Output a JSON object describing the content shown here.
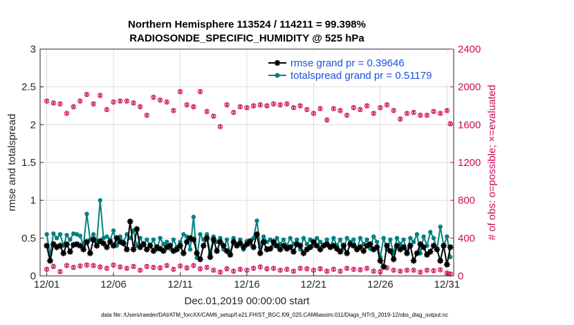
{
  "chart_data": {
    "type": "line",
    "title_line1": "Northern Hemisphere 113524 / 114211 = 99.398%",
    "title_line2": "RADIOSONDE_SPECIFIC_HUMIDITY @ 525 hPa",
    "xlabel": "Dec.01,2019 00:00:00 start",
    "ylabel_left": "rmse and totalspread",
    "ylabel_right": "# of obs: o=possible; ×=evaluated",
    "footer": "data file: /Users/raeder/DAI/ATM_forcXX/CAM6_setup/f.e21.FHIST_BGC.f09_025.CAM6assim.011/Diags_NTrS_2019-12/obs_diag_output.nc",
    "xlim": [
      0.5,
      31.5
    ],
    "x_ticks": [
      1,
      6,
      11,
      16,
      21,
      26,
      31
    ],
    "x_tick_labels": [
      "12/01",
      "12/06",
      "12/11",
      "12/16",
      "12/21",
      "12/26",
      "12/31"
    ],
    "ylim_left": [
      0,
      3
    ],
    "y_ticks_left": [
      "0",
      "0.5",
      "1",
      "1.5",
      "2",
      "2.5",
      "3"
    ],
    "ylim_right": [
      0,
      2400
    ],
    "y_ticks_right": [
      "0",
      "400",
      "800",
      "1200",
      "1600",
      "2000",
      "2400"
    ],
    "colors": {
      "rmse": "#000000",
      "spread": "#00807f",
      "obs": "#cc0a5a",
      "legend_text": "#1a4fd8",
      "grid": "#dcdcdc"
    },
    "legend": [
      {
        "key": "rmse",
        "label": "rmse grand pr = 0.39646"
      },
      {
        "key": "spread",
        "label": "totalspread grand pr = 0.51179"
      }
    ],
    "series": [
      {
        "name": "rmse",
        "x": [
          1,
          1.25,
          1.5,
          1.75,
          2,
          2.25,
          2.5,
          2.75,
          3,
          3.25,
          3.5,
          3.75,
          4,
          4.25,
          4.5,
          4.75,
          5,
          5.25,
          5.5,
          5.75,
          6,
          6.25,
          6.5,
          6.75,
          7,
          7.25,
          7.5,
          7.75,
          8,
          8.25,
          8.5,
          8.75,
          9,
          9.25,
          9.5,
          9.75,
          10,
          10.25,
          10.5,
          10.75,
          11,
          11.25,
          11.5,
          11.75,
          12,
          12.25,
          12.5,
          12.75,
          13,
          13.25,
          13.5,
          13.75,
          14,
          14.25,
          14.5,
          14.75,
          15,
          15.25,
          15.5,
          15.75,
          16,
          16.25,
          16.5,
          16.75,
          17,
          17.25,
          17.5,
          17.75,
          18,
          18.25,
          18.5,
          18.75,
          19,
          19.25,
          19.5,
          19.75,
          20,
          20.25,
          20.5,
          20.75,
          21,
          21.25,
          21.5,
          21.75,
          22,
          22.25,
          22.5,
          22.75,
          23,
          23.25,
          23.5,
          23.75,
          24,
          24.25,
          24.5,
          24.75,
          25,
          25.25,
          25.5,
          25.75,
          26,
          26.25,
          26.5,
          26.75,
          27,
          27.25,
          27.5,
          27.75,
          28,
          28.25,
          28.5,
          28.75,
          29,
          29.25,
          29.5,
          29.75,
          30,
          30.25,
          30.5,
          30.75,
          31,
          31.25
        ],
        "values": [
          0.4,
          0.2,
          0.42,
          0.38,
          0.4,
          0.3,
          0.42,
          0.32,
          0.41,
          0.42,
          0.4,
          0.35,
          0.45,
          0.3,
          0.48,
          0.4,
          0.46,
          0.43,
          0.38,
          0.45,
          0.4,
          0.5,
          0.45,
          0.43,
          0.35,
          0.72,
          0.35,
          0.62,
          0.38,
          0.42,
          0.35,
          0.4,
          0.33,
          0.38,
          0.36,
          0.33,
          0.38,
          0.4,
          0.33,
          0.35,
          0.4,
          0.3,
          0.45,
          0.5,
          0.48,
          0.3,
          0.22,
          0.4,
          0.5,
          0.25,
          0.48,
          0.33,
          0.45,
          0.4,
          0.33,
          0.28,
          0.45,
          0.4,
          0.43,
          0.38,
          0.42,
          0.46,
          0.38,
          0.55,
          0.3,
          0.45,
          0.35,
          0.36,
          0.45,
          0.4,
          0.35,
          0.4,
          0.36,
          0.38,
          0.32,
          0.42,
          0.4,
          0.3,
          0.35,
          0.38,
          0.45,
          0.4,
          0.35,
          0.4,
          0.42,
          0.38,
          0.4,
          0.36,
          0.32,
          0.4,
          0.3,
          0.42,
          0.4,
          0.35,
          0.38,
          0.33,
          0.4,
          0.42,
          0.35,
          0.38,
          0.2,
          0.12,
          0.4,
          0.33,
          0.22,
          0.4,
          0.35,
          0.38,
          0.3,
          0.4,
          0.2,
          0.3,
          0.42,
          0.38,
          0.28,
          0.32,
          0.4,
          0.35,
          0.2,
          0.4,
          0.15,
          0.38
        ]
      },
      {
        "name": "totalspread",
        "x": [
          1,
          1.25,
          1.5,
          1.75,
          2,
          2.25,
          2.5,
          2.75,
          3,
          3.25,
          3.5,
          3.75,
          4,
          4.25,
          4.5,
          4.75,
          5,
          5.25,
          5.5,
          5.75,
          6,
          6.25,
          6.5,
          6.75,
          7,
          7.25,
          7.5,
          7.75,
          8,
          8.25,
          8.5,
          8.75,
          9,
          9.25,
          9.5,
          9.75,
          10,
          10.25,
          10.5,
          10.75,
          11,
          11.25,
          11.5,
          11.75,
          12,
          12.25,
          12.5,
          12.75,
          13,
          13.25,
          13.5,
          13.75,
          14,
          14.25,
          14.5,
          14.75,
          15,
          15.25,
          15.5,
          15.75,
          16,
          16.25,
          16.5,
          16.75,
          17,
          17.25,
          17.5,
          17.75,
          18,
          18.25,
          18.5,
          18.75,
          19,
          19.25,
          19.5,
          19.75,
          20,
          20.25,
          20.5,
          20.75,
          21,
          21.25,
          21.5,
          21.75,
          22,
          22.25,
          22.5,
          22.75,
          23,
          23.25,
          23.5,
          23.75,
          24,
          24.25,
          24.5,
          24.75,
          25,
          25.25,
          25.5,
          25.75,
          26,
          26.25,
          26.5,
          26.75,
          27,
          27.25,
          27.5,
          27.75,
          28,
          28.25,
          28.5,
          28.75,
          29,
          29.25,
          29.5,
          29.75,
          30,
          30.25,
          30.5,
          30.75,
          31,
          31.25
        ],
        "values": [
          0.55,
          0.28,
          0.56,
          0.5,
          0.55,
          0.4,
          0.54,
          0.48,
          0.56,
          0.55,
          0.53,
          0.4,
          0.82,
          0.48,
          0.55,
          0.45,
          1.0,
          0.5,
          0.52,
          0.48,
          0.6,
          0.4,
          0.52,
          0.45,
          0.55,
          0.5,
          0.6,
          0.4,
          0.5,
          0.42,
          0.48,
          0.4,
          0.48,
          0.35,
          0.5,
          0.42,
          0.45,
          0.36,
          0.48,
          0.38,
          0.45,
          0.55,
          0.52,
          0.35,
          0.78,
          0.24,
          0.55,
          0.48,
          0.55,
          0.3,
          0.52,
          0.45,
          0.5,
          0.35,
          0.48,
          0.3,
          0.5,
          0.42,
          0.48,
          0.35,
          0.46,
          0.42,
          0.5,
          0.73,
          0.38,
          0.52,
          0.45,
          0.48,
          0.4,
          0.5,
          0.42,
          0.48,
          0.4,
          0.5,
          0.42,
          0.48,
          0.35,
          0.5,
          0.42,
          0.48,
          0.4,
          0.5,
          0.45,
          0.4,
          0.48,
          0.38,
          0.5,
          0.4,
          0.48,
          0.36,
          0.5,
          0.45,
          0.48,
          0.35,
          0.5,
          0.42,
          0.48,
          0.36,
          0.52,
          0.45,
          0.25,
          0.5,
          0.35,
          0.48,
          0.3,
          0.5,
          0.42,
          0.48,
          0.32,
          0.5,
          0.45,
          0.55,
          0.3,
          0.52,
          0.4,
          0.58,
          0.5,
          0.35,
          0.65,
          0.4,
          0.52,
          0.25
        ]
      },
      {
        "name": "obs_possible",
        "axis": "right",
        "x": [
          1,
          1.5,
          2,
          2.5,
          3,
          3.5,
          4,
          4.5,
          5,
          5.5,
          6,
          6.5,
          7,
          7.5,
          8,
          8.5,
          9,
          9.5,
          10,
          10.5,
          11,
          11.5,
          12,
          12.5,
          13,
          13.5,
          14,
          14.5,
          15,
          15.5,
          16,
          16.5,
          17,
          17.5,
          18,
          18.5,
          19,
          19.5,
          20,
          20.5,
          21,
          21.5,
          22,
          22.5,
          23,
          23.5,
          24,
          24.5,
          25,
          25.5,
          26,
          26.5,
          27,
          27.5,
          28,
          28.5,
          29,
          29.5,
          30,
          30.5,
          31,
          31.25
        ],
        "values": [
          1850,
          1830,
          1820,
          1720,
          1790,
          1850,
          1920,
          1820,
          1910,
          1760,
          1840,
          1850,
          1850,
          1830,
          1790,
          1700,
          1890,
          1860,
          1840,
          1750,
          1950,
          1810,
          1790,
          1950,
          1740,
          1690,
          1580,
          1810,
          1730,
          1790,
          1780,
          1800,
          1810,
          1800,
          1820,
          1810,
          1820,
          1780,
          1800,
          1760,
          1720,
          1770,
          1650,
          1770,
          1750,
          1700,
          1780,
          1760,
          1800,
          1720,
          1780,
          1810,
          1750,
          1660,
          1720,
          1730,
          1700,
          1700,
          1740,
          1720,
          1750,
          1610
        ]
      },
      {
        "name": "obs_evaluated",
        "axis": "right",
        "x": [
          1,
          1.5,
          2,
          2.5,
          3,
          3.5,
          4,
          4.5,
          5,
          5.5,
          6,
          6.5,
          7,
          7.5,
          8,
          8.5,
          9,
          9.5,
          10,
          10.5,
          11,
          11.5,
          12,
          12.5,
          13,
          13.5,
          14,
          14.5,
          15,
          15.5,
          16,
          16.5,
          17,
          17.5,
          18,
          18.5,
          19,
          19.5,
          20,
          20.5,
          21,
          21.5,
          22,
          22.5,
          23,
          23.5,
          24,
          24.5,
          25,
          25.5,
          26,
          26.5,
          27,
          27.5,
          28,
          28.5,
          29,
          29.5,
          30,
          30.5,
          31,
          31.25
        ],
        "values": [
          1850,
          1830,
          1820,
          1720,
          1790,
          1850,
          1920,
          1820,
          1910,
          1760,
          1840,
          1850,
          1850,
          1830,
          1790,
          1700,
          1890,
          1860,
          1840,
          1750,
          1950,
          1810,
          1790,
          1950,
          1740,
          1690,
          1580,
          1810,
          1730,
          1790,
          1780,
          1800,
          1810,
          1800,
          1820,
          1810,
          1820,
          1780,
          1800,
          1760,
          1720,
          1770,
          1650,
          1770,
          1750,
          1700,
          1780,
          1760,
          1800,
          1720,
          1780,
          1810,
          1750,
          1660,
          1720,
          1730,
          1700,
          1700,
          1740,
          1720,
          1750,
          1610
        ]
      },
      {
        "name": "obs_low_possible",
        "axis": "right",
        "x": [
          1,
          1.5,
          2,
          2.5,
          3,
          3.5,
          4,
          4.5,
          5,
          5.5,
          6,
          6.5,
          7,
          7.5,
          8,
          8.5,
          9,
          9.5,
          10,
          10.5,
          11,
          11.5,
          12,
          12.5,
          13,
          13.5,
          14,
          14.5,
          15,
          15.5,
          16,
          16.5,
          17,
          17.5,
          18,
          18.5,
          19,
          19.5,
          20,
          20.5,
          21,
          21.5,
          22,
          22.5,
          23,
          23.5,
          24,
          24.5,
          25,
          25.5,
          26,
          26.5,
          27,
          27.5,
          28,
          28.5,
          29,
          29.5,
          30,
          30.5,
          31,
          31.25
        ],
        "values": [
          70,
          100,
          45,
          110,
          90,
          105,
          115,
          110,
          95,
          80,
          115,
          95,
          80,
          100,
          60,
          100,
          90,
          85,
          110,
          70,
          105,
          85,
          110,
          75,
          90,
          60,
          40,
          75,
          50,
          70,
          60,
          80,
          95,
          75,
          80,
          60,
          70,
          50,
          80,
          75,
          60,
          75,
          50,
          70,
          50,
          80,
          70,
          65,
          80,
          50,
          45,
          85,
          60,
          50,
          60,
          60,
          40,
          60,
          55,
          65,
          30,
          20
        ]
      },
      {
        "name": "obs_low_evaluated",
        "axis": "right",
        "x": [
          1,
          1.5,
          2,
          2.5,
          3,
          3.5,
          4,
          4.5,
          5,
          5.5,
          6,
          6.5,
          7,
          7.5,
          8,
          8.5,
          9,
          9.5,
          10,
          10.5,
          11,
          11.5,
          12,
          12.5,
          13,
          13.5,
          14,
          14.5,
          15,
          15.5,
          16,
          16.5,
          17,
          17.5,
          18,
          18.5,
          19,
          19.5,
          20,
          20.5,
          21,
          21.5,
          22,
          22.5,
          23,
          23.5,
          24,
          24.5,
          25,
          25.5,
          26,
          26.5,
          27,
          27.5,
          28,
          28.5,
          29,
          29.5,
          30,
          30.5,
          31,
          31.25
        ],
        "values": [
          70,
          100,
          45,
          110,
          90,
          105,
          115,
          110,
          95,
          80,
          115,
          95,
          80,
          100,
          60,
          100,
          90,
          85,
          110,
          70,
          105,
          85,
          110,
          75,
          90,
          60,
          40,
          75,
          50,
          70,
          60,
          80,
          95,
          75,
          80,
          60,
          70,
          50,
          80,
          75,
          60,
          75,
          50,
          70,
          50,
          80,
          70,
          65,
          80,
          50,
          45,
          85,
          60,
          50,
          60,
          60,
          40,
          60,
          55,
          65,
          30,
          20
        ]
      }
    ]
  }
}
